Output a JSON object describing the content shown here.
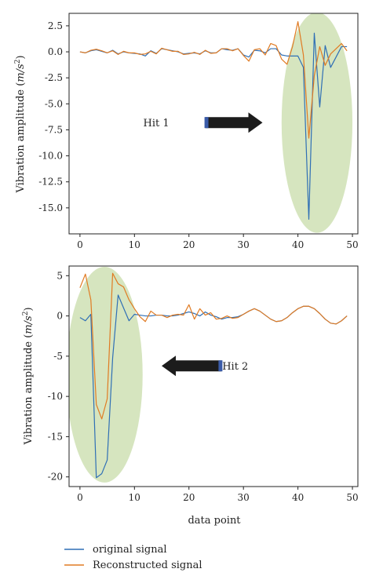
{
  "colors": {
    "original": "#2f6fb5",
    "reconstructed": "#e07b23",
    "highlight": "#cfe0b4",
    "arrow": "#1c1c1c",
    "arrow_accent": "#3a5ba8"
  },
  "legend": {
    "original": "original signal",
    "reconstructed": "Reconstructed signal"
  },
  "chart_data": [
    {
      "type": "line",
      "title": "",
      "xlabel": "",
      "ylabel_prefix": "Vibration amplitude (",
      "ylabel_unit_m": "m",
      "ylabel_unit_s": "/s",
      "ylabel_unit_exp": "2",
      "ylabel_suffix": ")",
      "xlim": [
        -2,
        51
      ],
      "ylim": [
        -17.5,
        3.7
      ],
      "xticks": [
        0,
        10,
        20,
        30,
        40,
        50
      ],
      "yticks": [
        2.5,
        0.0,
        -2.5,
        -5.0,
        -7.5,
        -10.0,
        -12.5,
        -15.0
      ],
      "ytick_labels": [
        "2.5",
        "0.0",
        "-2.5",
        "-5.0",
        "-7.5",
        "-10.0",
        "-12.5",
        "-15.0"
      ],
      "annotation": {
        "text": "Hit 1",
        "x": 14,
        "y": -6.8,
        "direction": "right",
        "arrow_x": [
          23,
          33.5
        ]
      },
      "highlight_ellipse": {
        "cx": 43.5,
        "cy": -6.8,
        "rx": 6.5,
        "ry": 10.6
      },
      "series": [
        {
          "name": "original signal",
          "key": "original",
          "x": [
            0,
            1,
            2,
            3,
            4,
            5,
            6,
            7,
            8,
            9,
            10,
            11,
            12,
            13,
            14,
            15,
            16,
            17,
            18,
            19,
            20,
            21,
            22,
            23,
            24,
            25,
            26,
            27,
            28,
            29,
            30,
            31,
            32,
            33,
            34,
            35,
            36,
            37,
            38,
            39,
            40,
            41,
            42,
            43,
            44,
            45,
            46,
            47,
            48,
            49
          ],
          "y": [
            0,
            -0.1,
            0.1,
            0.2,
            0.05,
            -0.1,
            0.15,
            -0.2,
            0,
            -0.1,
            -0.15,
            -0.2,
            -0.4,
            0.1,
            -0.15,
            0.3,
            0.2,
            0.1,
            0,
            -0.2,
            -0.15,
            -0.1,
            -0.2,
            0.1,
            -0.1,
            -0.1,
            0.3,
            0.2,
            0.15,
            0.3,
            -0.3,
            -0.5,
            0.15,
            0.1,
            -0.1,
            0.3,
            0.3,
            -0.3,
            -0.4,
            -0.4,
            -0.4,
            -1.5,
            -16.1,
            1.8,
            -5.3,
            0.6,
            -1.5,
            -0.5,
            0.5,
            0.5
          ]
        },
        {
          "name": "Reconstructed signal",
          "key": "reconstructed",
          "x": [
            0,
            1,
            2,
            3,
            4,
            5,
            6,
            7,
            8,
            9,
            10,
            11,
            12,
            13,
            14,
            15,
            16,
            17,
            18,
            19,
            20,
            21,
            22,
            23,
            24,
            25,
            26,
            27,
            28,
            29,
            30,
            31,
            32,
            33,
            34,
            35,
            36,
            37,
            38,
            39,
            40,
            41,
            42,
            43,
            44,
            45,
            46,
            47,
            48,
            49
          ],
          "y": [
            0,
            -0.1,
            0.15,
            0.25,
            0.1,
            -0.1,
            0.1,
            -0.25,
            0.05,
            -0.1,
            -0.1,
            -0.25,
            -0.2,
            0.05,
            -0.2,
            0.35,
            0.2,
            0.05,
            0.05,
            -0.25,
            -0.2,
            -0.05,
            -0.25,
            0.15,
            -0.15,
            -0.1,
            0.3,
            0.3,
            0.1,
            0.3,
            -0.35,
            -0.9,
            0.2,
            0.3,
            -0.3,
            0.8,
            0.6,
            -0.7,
            -1.2,
            0.5,
            2.9,
            -0.3,
            -8.3,
            -2.3,
            0.5,
            -1.3,
            -0.2,
            0.3,
            0.8,
            0.1
          ]
        }
      ]
    },
    {
      "type": "line",
      "title": "",
      "xlabel": "data point",
      "ylabel_prefix": "Vibration amplitude (",
      "ylabel_unit_m": "m",
      "ylabel_unit_s": "/s",
      "ylabel_unit_exp": "2",
      "ylabel_suffix": ")",
      "xlim": [
        -2,
        51
      ],
      "ylim": [
        -21.2,
        6.2
      ],
      "xticks": [
        0,
        10,
        20,
        30,
        40,
        50
      ],
      "yticks": [
        5,
        0,
        -5,
        -10,
        -15,
        -20
      ],
      "ytick_labels": [
        "5",
        "0",
        "-5",
        "-10",
        "-15",
        "-20"
      ],
      "annotation": {
        "text": "Hit 2",
        "x": 28.5,
        "y": -6.2,
        "direction": "left",
        "arrow_x": [
          26,
          15
        ]
      },
      "highlight_ellipse": {
        "cx": 4.5,
        "cy": -7.3,
        "rx": 7,
        "ry": 13.4
      },
      "series": [
        {
          "name": "original signal",
          "key": "original",
          "x": [
            0,
            1,
            2,
            3,
            4,
            5,
            6,
            7,
            8,
            9,
            10,
            11,
            12,
            13,
            14,
            15,
            16,
            17,
            18,
            19,
            20,
            21,
            22,
            23,
            24,
            25,
            26,
            27,
            28,
            29,
            30,
            31,
            32,
            33,
            34,
            35,
            36,
            37,
            38,
            39,
            40,
            41,
            42,
            43,
            44,
            45,
            46,
            47,
            48,
            49
          ],
          "y": [
            -0.2,
            -0.6,
            0.2,
            -20.1,
            -19.6,
            -17.9,
            -5.2,
            2.6,
            1.0,
            -0.6,
            0.2,
            0.1,
            0,
            0,
            0.1,
            0.1,
            0,
            0,
            0.1,
            0.3,
            0.5,
            0.3,
            0,
            0.5,
            0.1,
            -0.1,
            -0.4,
            -0.2,
            -0.2,
            -0.1,
            0.2,
            0.6,
            0.9,
            0.6,
            0.1,
            -0.4,
            -0.7,
            -0.6,
            -0.2,
            0.4,
            0.9,
            1.2,
            1.2,
            0.9,
            0.3,
            -0.4,
            -0.9,
            -1.0,
            -0.6,
            0
          ]
        },
        {
          "name": "Reconstructed signal",
          "key": "reconstructed",
          "x": [
            0,
            1,
            2,
            3,
            4,
            5,
            6,
            7,
            8,
            9,
            10,
            11,
            12,
            13,
            14,
            15,
            16,
            17,
            18,
            19,
            20,
            21,
            22,
            23,
            24,
            25,
            26,
            27,
            28,
            29,
            30,
            31,
            32,
            33,
            34,
            35,
            36,
            37,
            38,
            39,
            40,
            41,
            42,
            43,
            44,
            45,
            46,
            47,
            48,
            49
          ],
          "y": [
            3.5,
            5.2,
            2.0,
            -11.0,
            -12.8,
            -10.3,
            5.3,
            4.0,
            3.6,
            2.0,
            0.9,
            -0.1,
            -0.7,
            0.6,
            0.1,
            0.1,
            -0.2,
            0.1,
            0.2,
            0.1,
            1.4,
            -0.4,
            0.9,
            0.1,
            0.4,
            -0.4,
            -0.3,
            0,
            -0.3,
            -0.2,
            0.2,
            0.6,
            0.9,
            0.6,
            0.1,
            -0.4,
            -0.7,
            -0.6,
            -0.2,
            0.4,
            0.9,
            1.2,
            1.2,
            0.9,
            0.3,
            -0.4,
            -0.9,
            -1.0,
            -0.6,
            0
          ]
        }
      ]
    }
  ]
}
